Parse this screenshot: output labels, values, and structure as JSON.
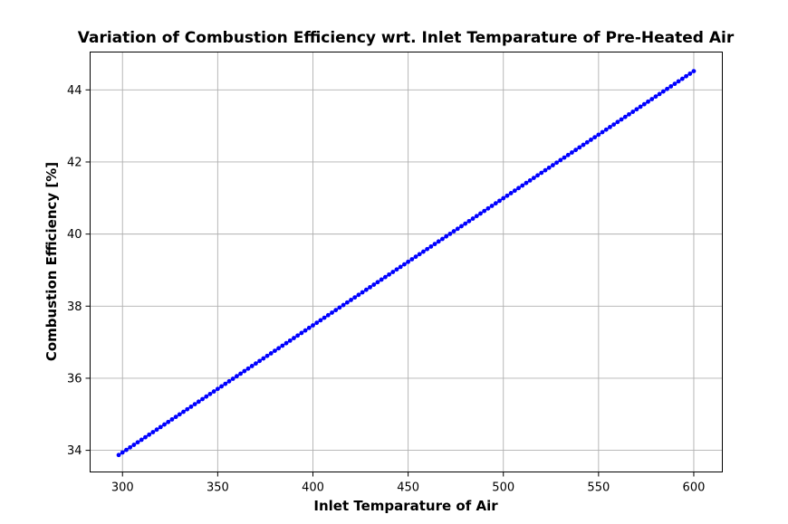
{
  "chart_data": {
    "type": "line",
    "title": "Variation of Combustion Efficiency wrt. Inlet Temparature of Pre-Heated Air",
    "xlabel": "Inlet Temparature of Air",
    "ylabel": "Combustion Efficiency [%]",
    "xlim": [
      283,
      615
    ],
    "ylim": [
      33.4,
      45.05
    ],
    "xticks": [
      300,
      350,
      400,
      450,
      500,
      550,
      600
    ],
    "yticks": [
      34,
      36,
      38,
      40,
      42,
      44
    ],
    "grid": true,
    "legend": "none",
    "series": [
      {
        "color": "#0000ff",
        "marker": "dot",
        "x_start": 298,
        "x_end": 600,
        "y_start": 33.87,
        "y_end": 44.52,
        "num_points": 152
      }
    ]
  }
}
